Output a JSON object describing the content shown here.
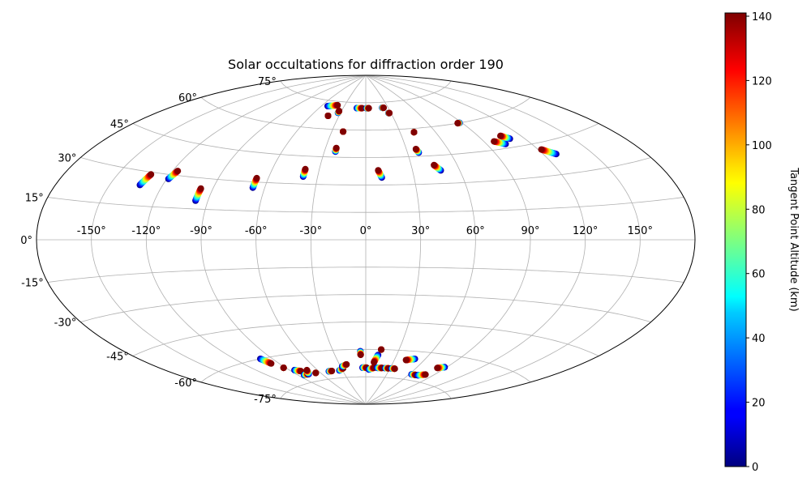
{
  "chart_data": {
    "type": "scatter",
    "projection": "aitoff",
    "title": "Solar occultations for diffraction order 190",
    "lon_ticks": [
      "-150°",
      "-120°",
      "-90°",
      "-60°",
      "-30°",
      "0°",
      "30°",
      "60°",
      "90°",
      "120°",
      "150°"
    ],
    "lon_tick_values": [
      -150,
      -120,
      -90,
      -60,
      -30,
      0,
      30,
      60,
      90,
      120,
      150
    ],
    "lat_ticks": [
      "-75°",
      "-60°",
      "-45°",
      "-30°",
      "-15°",
      "0°",
      "15°",
      "30°",
      "45°",
      "60°",
      "75°"
    ],
    "lat_tick_values": [
      -75,
      -60,
      -45,
      -30,
      -15,
      0,
      15,
      30,
      45,
      60,
      75
    ],
    "grid": true,
    "colorbar": {
      "label": "Tangent Point Altitude (km)",
      "range": [
        0,
        141
      ],
      "colormap": "jet",
      "ticks": [
        "0",
        "20",
        "40",
        "60",
        "80",
        "100",
        "120",
        "140"
      ],
      "tick_values": [
        0,
        20,
        40,
        60,
        80,
        100,
        120,
        140
      ]
    },
    "occultation_tracks": [
      {
        "start": [
          -133,
          24
        ],
        "end": [
          -131,
          29
        ]
      },
      {
        "start": [
          -119,
          28
        ],
        "end": [
          -117,
          32
        ]
      },
      {
        "start": [
          -97,
          19
        ],
        "end": [
          -97,
          25
        ]
      },
      {
        "start": [
          -67,
          27
        ],
        "end": [
          -67,
          32
        ]
      },
      {
        "start": [
          -39,
          34
        ],
        "end": [
          -39,
          38
        ]
      },
      {
        "start": [
          -22,
          48
        ],
        "end": [
          -22,
          50
        ]
      },
      {
        "start": [
          -52,
          72
        ],
        "end": [
          -40,
          73
        ]
      },
      {
        "start": [
          -20,
          59
        ],
        "end": [
          -20,
          59
        ]
      },
      {
        "start": [
          -42,
          67
        ],
        "end": [
          -42,
          67
        ]
      },
      {
        "start": [
          -33,
          69
        ],
        "end": [
          -33,
          70
        ]
      },
      {
        "start": [
          -12,
          72
        ],
        "end": [
          -5,
          72
        ]
      },
      {
        "start": [
          1,
          72
        ],
        "end": [
          4,
          72
        ]
      },
      {
        "start": [
          10,
          34
        ],
        "end": [
          8,
          38
        ]
      },
      {
        "start": [
          22,
          72
        ],
        "end": [
          24,
          72
        ]
      },
      {
        "start": [
          27,
          69
        ],
        "end": [
          28,
          69
        ]
      },
      {
        "start": [
          38,
          47
        ],
        "end": [
          37,
          49
        ]
      },
      {
        "start": [
          42,
          58
        ],
        "end": [
          42,
          58
        ]
      },
      {
        "start": [
          48,
          37
        ],
        "end": [
          45,
          40
        ]
      },
      {
        "start": [
          88,
          60
        ],
        "end": [
          86,
          60
        ]
      },
      {
        "start": [
          103,
          47
        ],
        "end": [
          97,
          49
        ]
      },
      {
        "start": [
          110,
          49
        ],
        "end": [
          106,
          51
        ]
      },
      {
        "start": [
          128,
          39
        ],
        "end": [
          122,
          42
        ]
      },
      {
        "start": [
          -100,
          -60
        ],
        "end": [
          -97,
          -63
        ]
      },
      {
        "start": [
          -92,
          -66
        ],
        "end": [
          -92,
          -66
        ]
      },
      {
        "start": [
          -85,
          -68
        ],
        "end": [
          -80,
          -69
        ]
      },
      {
        "start": [
          -83,
          -71
        ],
        "end": [
          -77,
          -71
        ]
      },
      {
        "start": [
          -76,
          -71
        ],
        "end": [
          -72,
          -69
        ]
      },
      {
        "start": [
          -66,
          -71
        ],
        "end": [
          -66,
          -71
        ]
      },
      {
        "start": [
          -48,
          -71
        ],
        "end": [
          -44,
          -71
        ]
      },
      {
        "start": [
          -34,
          -71
        ],
        "end": [
          -28,
          -70
        ]
      },
      {
        "start": [
          -28,
          -69
        ],
        "end": [
          -22,
          -68
        ]
      },
      {
        "start": [
          -5,
          -61
        ],
        "end": [
          -5,
          -63
        ]
      },
      {
        "start": [
          -4,
          -70
        ],
        "end": [
          1,
          -70
        ]
      },
      {
        "start": [
          4,
          -71
        ],
        "end": [
          10,
          -70
        ]
      },
      {
        "start": [
          12,
          -63
        ],
        "end": [
          9,
          -67
        ]
      },
      {
        "start": [
          14,
          -60
        ],
        "end": [
          14,
          -60
        ]
      },
      {
        "start": [
          14,
          -70
        ],
        "end": [
          20,
          -70
        ]
      },
      {
        "start": [
          24,
          -70
        ],
        "end": [
          28,
          -70
        ]
      },
      {
        "start": [
          32,
          -70
        ],
        "end": [
          36,
          -70
        ]
      },
      {
        "start": [
          50,
          -64
        ],
        "end": [
          42,
          -65
        ]
      },
      {
        "start": [
          63,
          -72
        ],
        "end": [
          69,
          -72
        ]
      },
      {
        "start": [
          72,
          -72
        ],
        "end": [
          80,
          -71
        ]
      },
      {
        "start": [
          88,
          -66
        ],
        "end": [
          82,
          -67
        ]
      }
    ]
  }
}
